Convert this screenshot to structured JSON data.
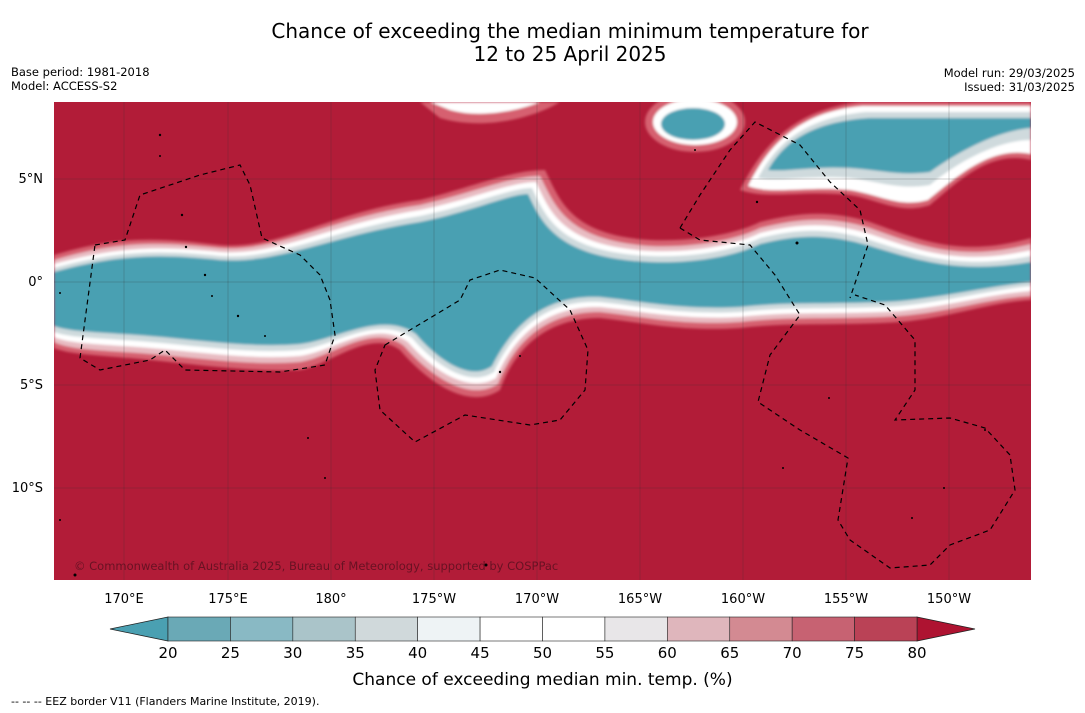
{
  "title": {
    "line1": "Chance of exceeding the median minimum temperature for",
    "line2": "12 to 25 April 2025"
  },
  "meta_left": {
    "base_period": "Base period: 1981-2018",
    "model": "Model: ACCESS-S2"
  },
  "meta_right": {
    "model_run": "Model run: 29/03/2025",
    "issued": "Issued: 31/03/2025"
  },
  "map": {
    "lat_labels": [
      "5°N",
      "0°",
      "5°S",
      "10°S"
    ],
    "lon_labels": [
      "170°E",
      "175°E",
      "180°",
      "175°W",
      "170°W",
      "165°W",
      "160°W",
      "155°W",
      "150°W"
    ],
    "attribution": "© Commonwealth of Australia 2025, Bureau of Meteorology, supported by COSPPac",
    "colors": {
      "above_median": "#b21c38",
      "below_median": "#4aa0b2",
      "neutral": "#ffffff"
    }
  },
  "colorbar": {
    "label": "Chance of exceeding median min. temp. (%)",
    "tick_labels": [
      "20",
      "25",
      "30",
      "35",
      "40",
      "45",
      "50",
      "55",
      "60",
      "65",
      "70",
      "75",
      "80"
    ],
    "colors": [
      "#6aa9b6",
      "#89b9c4",
      "#aac4c9",
      "#d0d9db",
      "#eef3f5",
      "#ffffff",
      "#ffffff",
      "#e8e6e8",
      "#dfb6bc",
      "#d38a92",
      "#c76272",
      "#ba4256"
    ],
    "under_color": "#4aa0b2",
    "over_color": "#ae1331"
  },
  "footnote": "--  --  -- EEZ border V11 (Flanders Marine Institute, 2019)."
}
